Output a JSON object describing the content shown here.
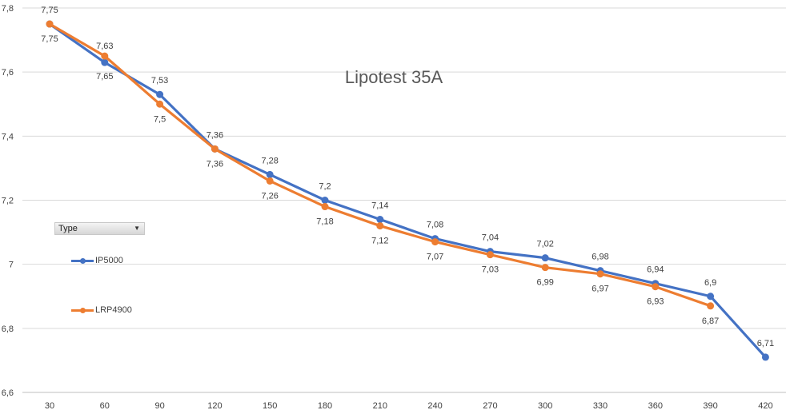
{
  "chart_data": {
    "type": "line",
    "title": "Lipotest 35A",
    "xlabel": "",
    "ylabel": "",
    "categories": [
      "30",
      "60",
      "90",
      "120",
      "150",
      "180",
      "210",
      "240",
      "270",
      "300",
      "330",
      "360",
      "390",
      "420"
    ],
    "ylim": [
      6.6,
      7.8
    ],
    "yticks": [
      "6,6",
      "6,8",
      "7",
      "7,2",
      "7,4",
      "7,6",
      "7,8"
    ],
    "grid": true,
    "legend_position": "left",
    "series": [
      {
        "name": "IP5000",
        "color": "#4472C4",
        "values": [
          7.75,
          7.63,
          7.53,
          7.36,
          7.28,
          7.2,
          7.14,
          7.08,
          7.04,
          7.02,
          6.98,
          6.94,
          6.9,
          6.71
        ],
        "labels": [
          "7,75",
          "7,63",
          "7,53",
          "7,36",
          "7,28",
          "7,2",
          "7,14",
          "7,08",
          "7,04",
          "7,02",
          "6,98",
          "6,94",
          "6,9",
          "6,71"
        ]
      },
      {
        "name": "LRP4900",
        "color": "#ED7D31",
        "values": [
          7.75,
          7.65,
          7.5,
          7.36,
          7.26,
          7.18,
          7.12,
          7.07,
          7.03,
          6.99,
          6.97,
          6.93,
          6.87,
          null
        ],
        "labels": [
          "7,75",
          "7,65",
          "7,5",
          "7,36",
          "7,26",
          "7,18",
          "7,12",
          "7,07",
          "7,03",
          "6,99",
          "6,97",
          "6,93",
          "6,87",
          ""
        ]
      }
    ]
  },
  "filter": {
    "label": "Type",
    "arrow_icon": "dropdown-arrow-icon"
  }
}
